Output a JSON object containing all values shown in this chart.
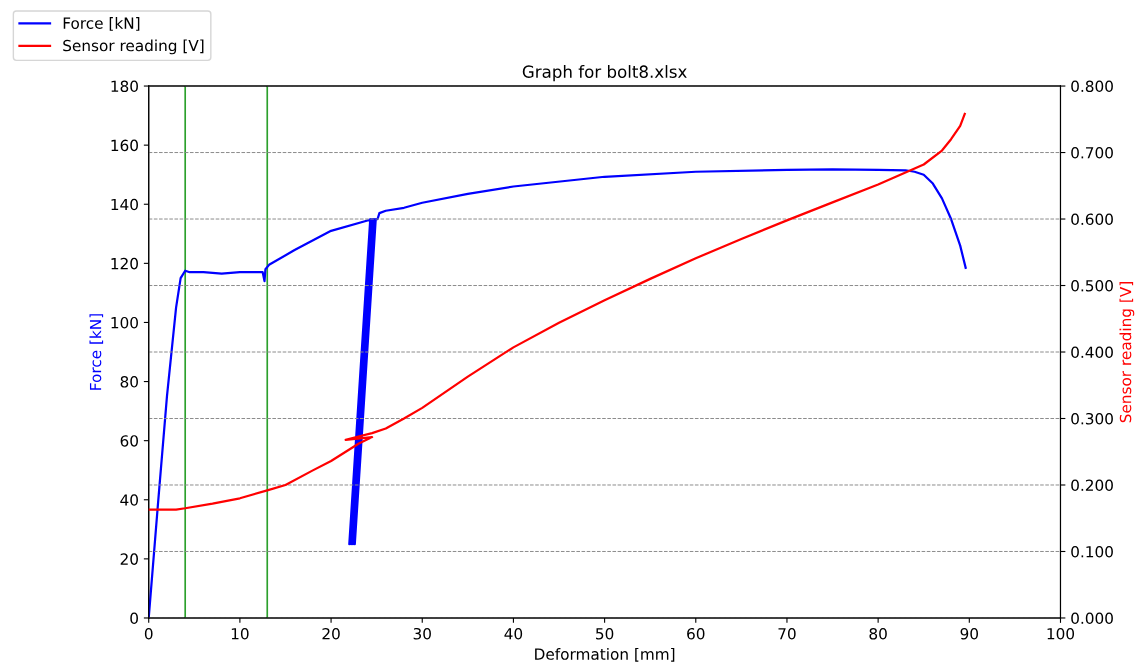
{
  "chart_data": {
    "type": "line",
    "title": "Graph for bolt8.xlsx",
    "xlabel": "Deformation [mm]",
    "ylabel": "Force [kN]",
    "y2label": "Sensor reading [V]",
    "series": [
      {
        "name": "Force [kN]",
        "color": "#0000ff",
        "axis": "y",
        "x": [
          0,
          1,
          2,
          3,
          3.5,
          4,
          4.5,
          6,
          8,
          10,
          12.5,
          12.7,
          12.8,
          13.2,
          16,
          20,
          24,
          24.7,
          22.0,
          24.3,
          22.2,
          24.5,
          22.4,
          24.7,
          22.6,
          24.9,
          25.1,
          25.3,
          26,
          28,
          30,
          35,
          40,
          50,
          60,
          70,
          75,
          80,
          83,
          84,
          85,
          86,
          87,
          88,
          89,
          89.6
        ],
        "values": [
          0,
          38,
          75,
          105,
          115,
          117.5,
          117,
          117,
          116.5,
          117,
          117,
          114,
          118,
          119.5,
          124.5,
          131,
          134.5,
          135,
          25,
          135,
          25,
          135,
          25,
          135,
          25,
          135,
          135,
          137,
          137.8,
          138.8,
          140.5,
          143.5,
          146,
          149.3,
          151,
          151.6,
          151.8,
          151.6,
          151.5,
          151,
          150,
          147,
          142,
          135,
          126,
          118.5
        ]
      },
      {
        "name": "Sensor reading [V]",
        "color": "#ff0000",
        "axis": "y2",
        "x": [
          0,
          3,
          4,
          7,
          10,
          13,
          15,
          18,
          20,
          23,
          24.5,
          21.6,
          23,
          24.5,
          26,
          28,
          30,
          35,
          40,
          45,
          50,
          55,
          60,
          65,
          70,
          75,
          80,
          83,
          85,
          87,
          88,
          89,
          89.5
        ],
        "values": [
          0.163,
          0.163,
          0.165,
          0.172,
          0.18,
          0.192,
          0.2,
          0.222,
          0.236,
          0.262,
          0.272,
          0.268,
          0.273,
          0.278,
          0.285,
          0.3,
          0.316,
          0.363,
          0.407,
          0.444,
          0.478,
          0.51,
          0.541,
          0.57,
          0.598,
          0.625,
          0.652,
          0.67,
          0.682,
          0.703,
          0.72,
          0.74,
          0.758
        ]
      }
    ],
    "xlim": [
      0,
      100
    ],
    "xticks": [
      0,
      10,
      20,
      30,
      40,
      50,
      60,
      70,
      80,
      90,
      100
    ],
    "ylim": [
      0,
      180
    ],
    "yticks": [
      0,
      20,
      40,
      60,
      80,
      100,
      120,
      140,
      160,
      180
    ],
    "y2lim": [
      0,
      0.8
    ],
    "y2ticks": [
      {
        "value": 0,
        "label": "0.000"
      },
      {
        "value": 0.1,
        "label": "0.100"
      },
      {
        "value": 0.2,
        "label": "0.200"
      },
      {
        "value": 0.3,
        "label": "0.300"
      },
      {
        "value": 0.4,
        "label": "0.400"
      },
      {
        "value": 0.5,
        "label": "0.500"
      },
      {
        "value": 0.6,
        "label": "0.600"
      },
      {
        "value": 0.7,
        "label": "0.700"
      },
      {
        "value": 0.8,
        "label": "0.800"
      }
    ],
    "ref_lines": [
      {
        "axis": "x",
        "value": 4,
        "color": "#2ca02c"
      },
      {
        "axis": "x",
        "value": 13,
        "color": "#2ca02c"
      }
    ],
    "grid": "y2",
    "legend": "top left",
    "marker": "none",
    "line_style": "solid"
  }
}
